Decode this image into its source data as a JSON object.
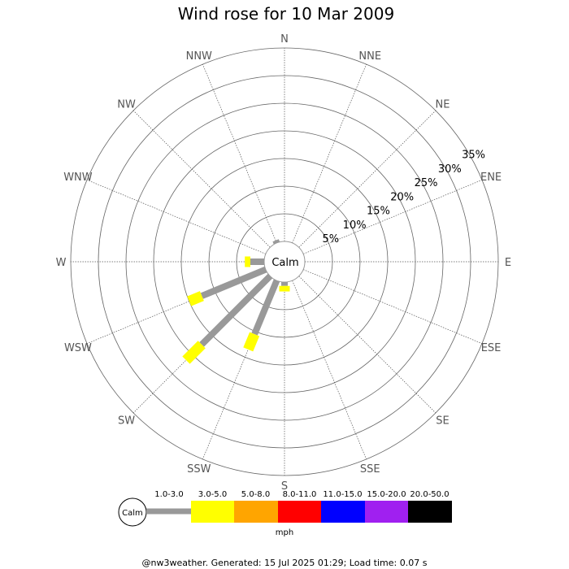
{
  "chart_data": {
    "type": "wind-rose",
    "title": "Wind rose for 10 Mar 2009",
    "directions": [
      "N",
      "NNE",
      "NE",
      "ENE",
      "E",
      "ESE",
      "SE",
      "SSE",
      "S",
      "SSW",
      "SW",
      "WSW",
      "W",
      "WNW",
      "NW",
      "NNW"
    ],
    "radial_labels": [
      "5%",
      "10%",
      "15%",
      "20%",
      "25%",
      "30%",
      "35%"
    ],
    "radial_max": 35,
    "calm_label": "Calm",
    "speed_bins": [
      {
        "label": "1.0-3.0",
        "color": "#999999"
      },
      {
        "label": "3.0-5.0",
        "color": "#ffff00"
      },
      {
        "label": "5.0-8.0",
        "color": "#ffa500"
      },
      {
        "label": "8.0-11.0",
        "color": "#ff0000"
      },
      {
        "label": "11.0-15.0",
        "color": "#0000ff"
      },
      {
        "label": "15.0-20.0",
        "color": "#a020f0"
      },
      {
        "label": "20.0-50.0",
        "color": "#000000"
      }
    ],
    "unit": "mph",
    "series": [
      {
        "direction": "N",
        "cumulative": [
          0,
          0
        ]
      },
      {
        "direction": "NNE",
        "cumulative": [
          0,
          0
        ]
      },
      {
        "direction": "NE",
        "cumulative": [
          0,
          0
        ]
      },
      {
        "direction": "ENE",
        "cumulative": [
          0,
          0
        ]
      },
      {
        "direction": "E",
        "cumulative": [
          0,
          0
        ]
      },
      {
        "direction": "ESE",
        "cumulative": [
          0,
          0
        ]
      },
      {
        "direction": "SE",
        "cumulative": [
          0,
          0
        ]
      },
      {
        "direction": "SSE",
        "cumulative": [
          0,
          0
        ]
      },
      {
        "direction": "S",
        "cumulative": [
          0.7,
          1.7
        ]
      },
      {
        "direction": "SSW",
        "cumulative": [
          10.5,
          13.5
        ]
      },
      {
        "direction": "SW",
        "cumulative": [
          17.5,
          21.5
        ]
      },
      {
        "direction": "WSW",
        "cumulative": [
          12.5,
          15
        ]
      },
      {
        "direction": "W",
        "cumulative": [
          2.5,
          3.5
        ]
      },
      {
        "direction": "WNW",
        "cumulative": [
          0,
          0
        ]
      },
      {
        "direction": "NW",
        "cumulative": [
          0,
          0
        ]
      },
      {
        "direction": "NNW",
        "cumulative": [
          0.5,
          0.5
        ]
      }
    ]
  },
  "footer": "@nw3weather. Generated: 15 Jul 2025 01:29; Load time: 0.07 s"
}
